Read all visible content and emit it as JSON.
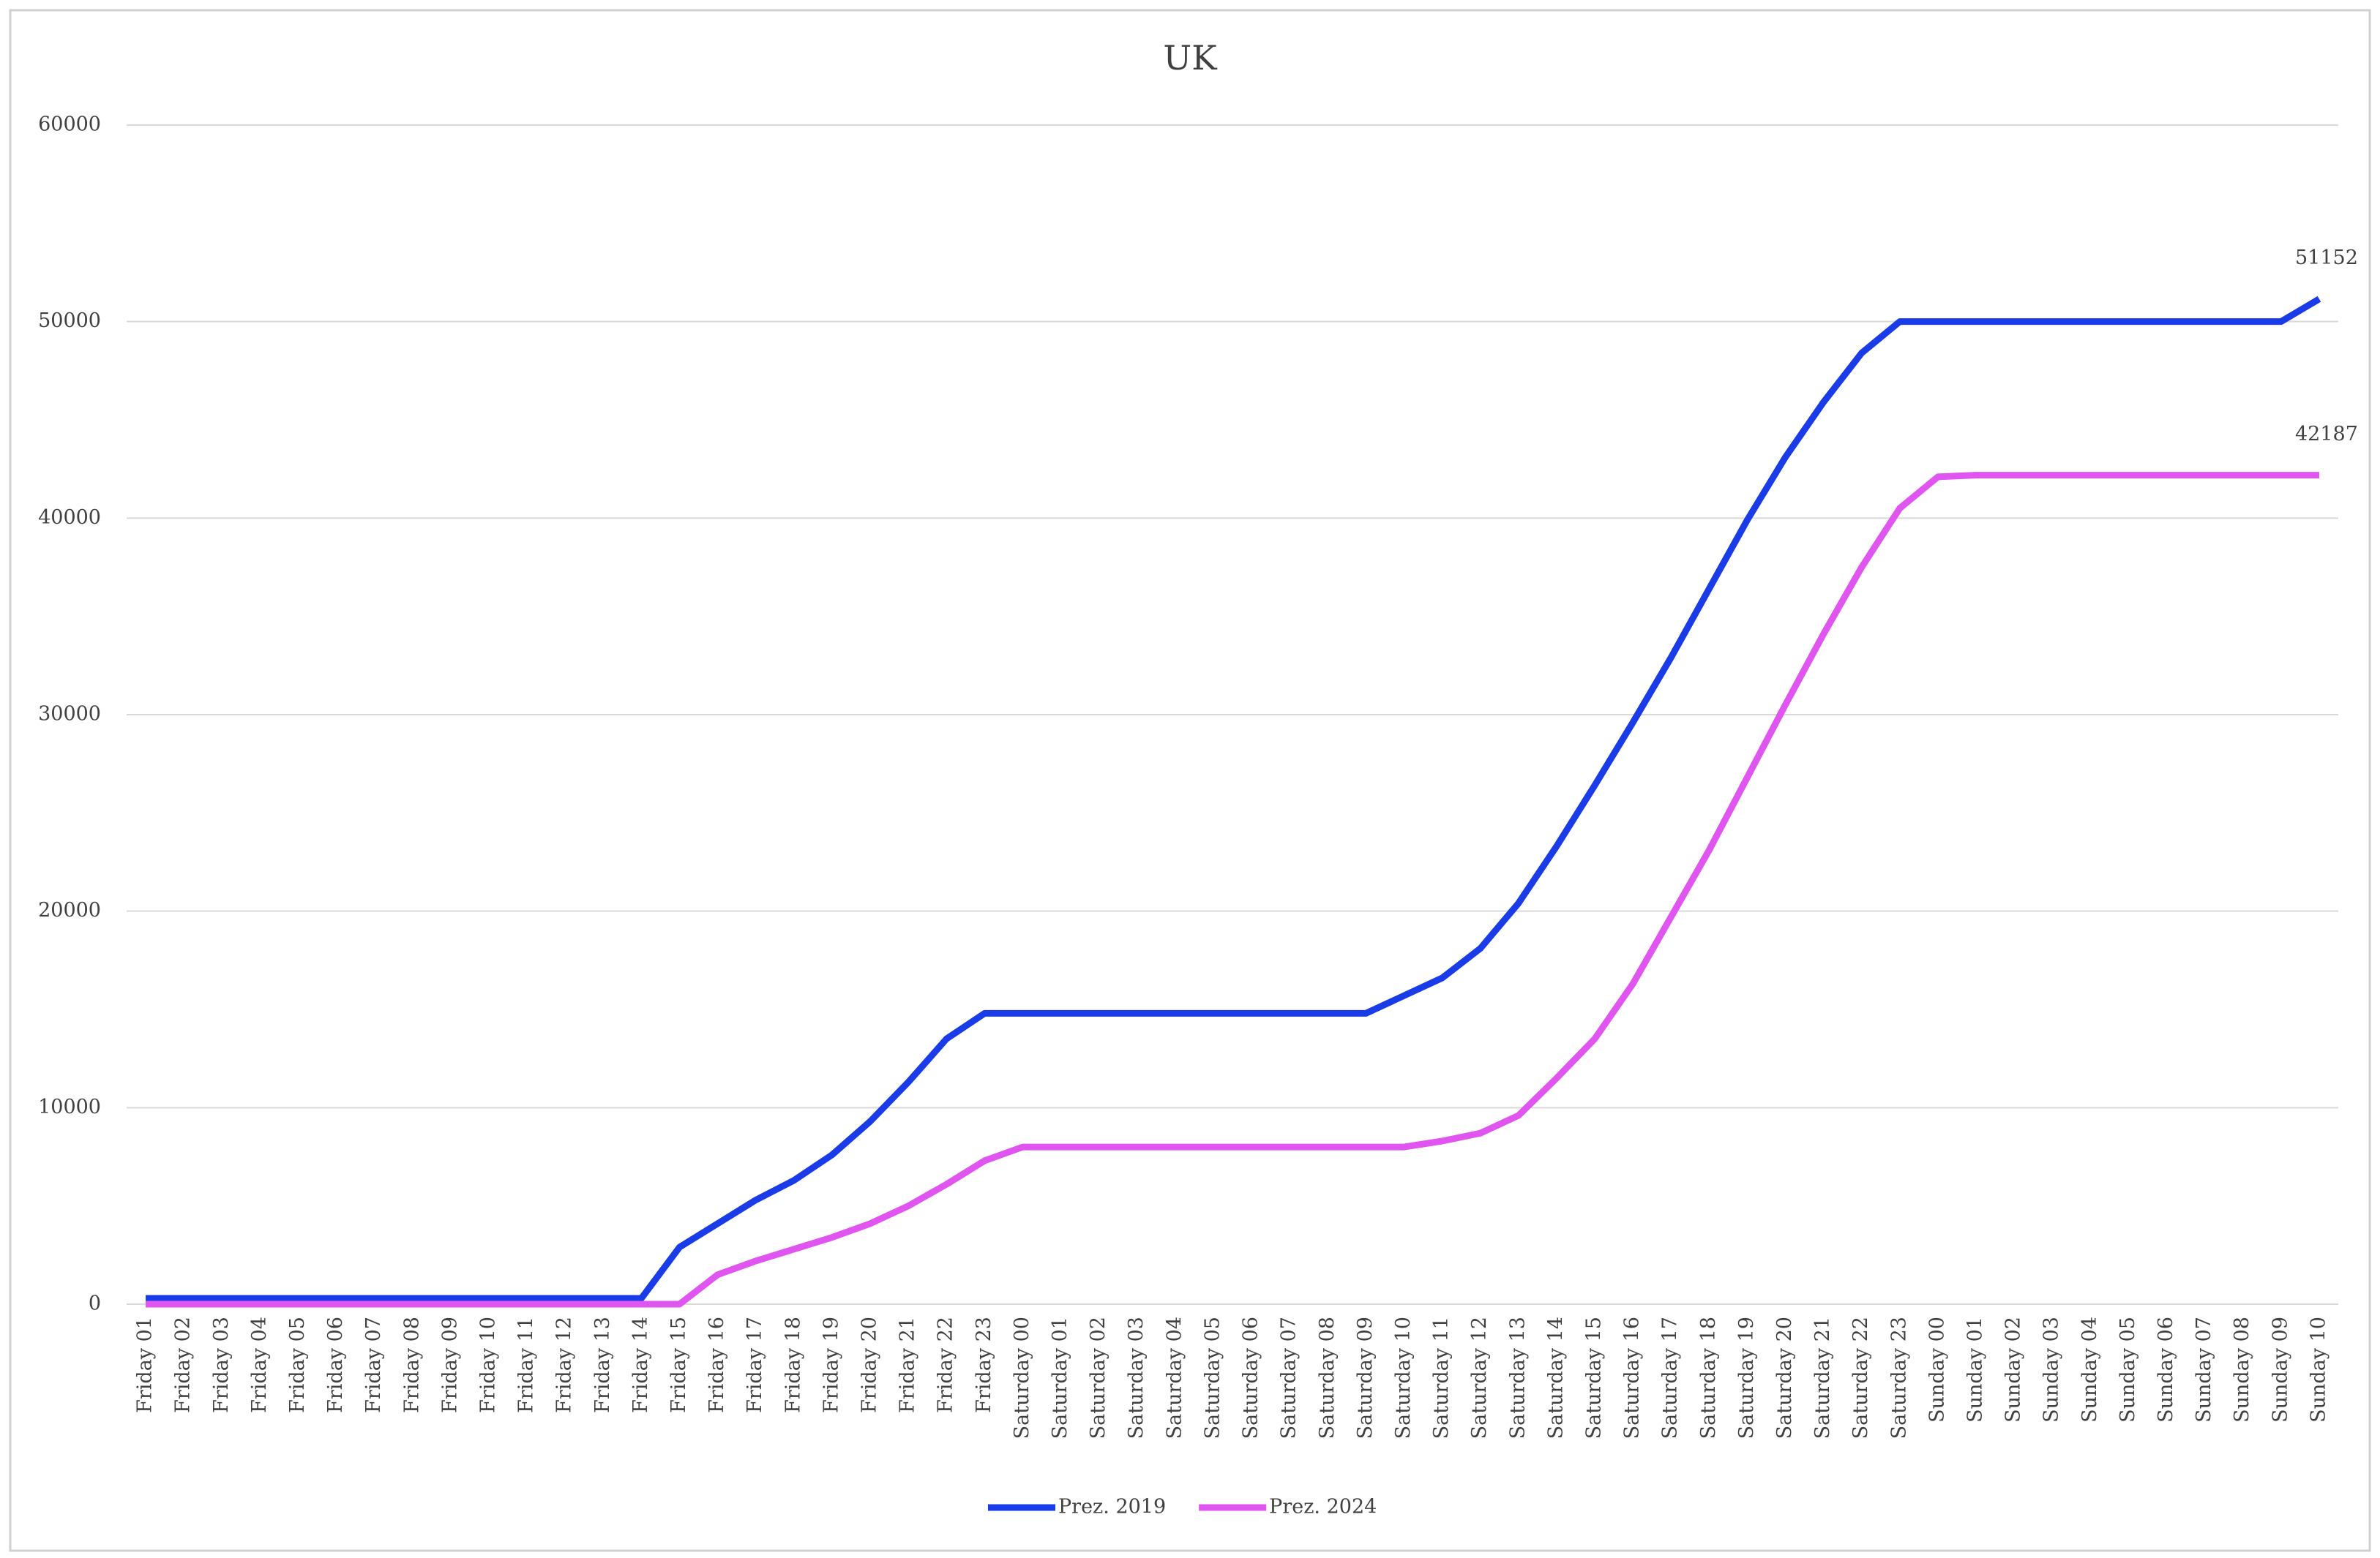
{
  "chart_data": {
    "type": "line",
    "title": "UK",
    "categories": [
      "Friday 01",
      "Friday 02",
      "Friday 03",
      "Friday 04",
      "Friday 05",
      "Friday 06",
      "Friday 07",
      "Friday 08",
      "Friday 09",
      "Friday 10",
      "Friday 11",
      "Friday 12",
      "Friday 13",
      "Friday 14",
      "Friday 15",
      "Friday 16",
      "Friday 17",
      "Friday 18",
      "Friday 19",
      "Friday 20",
      "Friday 21",
      "Friday 22",
      "Friday 23",
      "Saturday 00",
      "Saturday 01",
      "Saturday 02",
      "Saturday 03",
      "Saturday 04",
      "Saturday 05",
      "Saturday 06",
      "Saturday 07",
      "Saturday 08",
      "Saturday 09",
      "Saturday 10",
      "Saturday 11",
      "Saturday 12",
      "Saturday 13",
      "Saturday 14",
      "Saturday 15",
      "Saturday 16",
      "Saturday 17",
      "Saturday 18",
      "Saturday 19",
      "Saturday 20",
      "Saturday 21",
      "Saturday 22",
      "Saturday 23",
      "Sunday 00",
      "Sunday 01",
      "Sunday 02",
      "Sunday 03",
      "Sunday 04",
      "Sunday 05",
      "Sunday 06",
      "Sunday 07",
      "Sunday 08",
      "Sunday 09",
      "Sunday 10"
    ],
    "series": [
      {
        "name": "Prez. 2019",
        "color": "#1a3be8",
        "values": [
          300,
          300,
          300,
          300,
          300,
          300,
          300,
          300,
          300,
          300,
          300,
          300,
          300,
          300,
          2900,
          4100,
          5300,
          6300,
          7600,
          9300,
          11300,
          13500,
          14800,
          14800,
          14800,
          14800,
          14800,
          14800,
          14800,
          14800,
          14800,
          14800,
          14800,
          15700,
          16600,
          18100,
          20400,
          23300,
          26400,
          29600,
          32900,
          36400,
          39900,
          43100,
          45900,
          48400,
          50000,
          50000,
          50000,
          50000,
          50000,
          50000,
          50000,
          50000,
          50000,
          50000,
          50000,
          51152
        ]
      },
      {
        "name": "Prez. 2024",
        "color": "#e055ef",
        "values": [
          0,
          0,
          0,
          0,
          0,
          0,
          0,
          0,
          0,
          0,
          0,
          0,
          0,
          0,
          0,
          1500,
          2200,
          2800,
          3400,
          4100,
          5000,
          6100,
          7300,
          8000,
          8000,
          8000,
          8000,
          8000,
          8000,
          8000,
          8000,
          8000,
          8000,
          8000,
          8300,
          8700,
          9600,
          11500,
          13500,
          16300,
          19700,
          23100,
          26800,
          30500,
          34100,
          37500,
          40500,
          42100,
          42187,
          42187,
          42187,
          42187,
          42187,
          42187,
          42187,
          42187,
          42187,
          42187
        ]
      }
    ],
    "ylim": [
      0,
      60000
    ],
    "yticks": [
      0,
      10000,
      20000,
      30000,
      40000,
      50000,
      60000
    ],
    "grid": true,
    "legend": "bottom"
  }
}
